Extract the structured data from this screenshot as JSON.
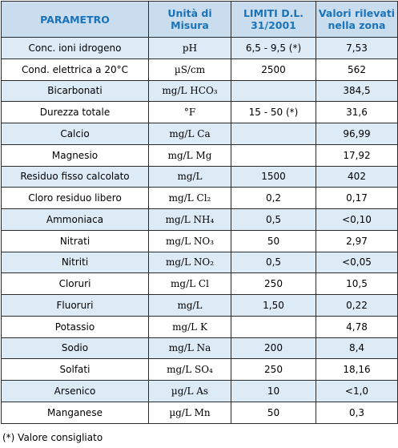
{
  "headers": {
    "parametro": "PARAMETRO",
    "unita": "Unità di Misura",
    "limiti": "LIMITI D.L. 31/2001",
    "valori": "Valori rilevati nella zona"
  },
  "rows": [
    {
      "name": "Conc. ioni idrogeno",
      "unit": "pH",
      "limit": "6,5 - 9,5 (*)",
      "value": "7,53"
    },
    {
      "name": "Cond. elettrica a 20°C",
      "unit": "µS/cm",
      "limit": "2500",
      "value": "562"
    },
    {
      "name": "Bicarbonati",
      "unit": "mg/L HCO₃",
      "limit": "",
      "value": "384,5"
    },
    {
      "name": "Durezza totale",
      "unit": "°F",
      "limit": "15 - 50 (*)",
      "value": "31,6"
    },
    {
      "name": "Calcio",
      "unit": "mg/L Ca",
      "limit": "",
      "value": "96,99"
    },
    {
      "name": "Magnesio",
      "unit": "mg/L Mg",
      "limit": "",
      "value": "17,92"
    },
    {
      "name": "Residuo fisso calcolato",
      "unit": "mg/L",
      "limit": "1500",
      "value": "402"
    },
    {
      "name": "Cloro residuo libero",
      "unit": "mg/L Cl₂",
      "limit": "0,2",
      "value": "0,17"
    },
    {
      "name": "Ammoniaca",
      "unit": "mg/L NH₄",
      "limit": "0,5",
      "value": "<0,10"
    },
    {
      "name": "Nitrati",
      "unit": "mg/L NO₃",
      "limit": "50",
      "value": "2,97"
    },
    {
      "name": "Nitriti",
      "unit": "mg/L NO₂",
      "limit": "0,5",
      "value": "<0,05"
    },
    {
      "name": "Cloruri",
      "unit": "mg/L Cl",
      "limit": "250",
      "value": "10,5"
    },
    {
      "name": "Fluoruri",
      "unit": "mg/L",
      "limit": "1,50",
      "value": "0,22"
    },
    {
      "name": "Potassio",
      "unit": "mg/L K",
      "limit": "",
      "value": "4,78"
    },
    {
      "name": "Sodio",
      "unit": "mg/L Na",
      "limit": "200",
      "value": "8,4"
    },
    {
      "name": "Solfati",
      "unit": "mg/L SO₄",
      "limit": "250",
      "value": "18,16"
    },
    {
      "name": "Arsenico",
      "unit": "µg/L As",
      "limit": "10",
      "value": "<1,0"
    },
    {
      "name": "Manganese",
      "unit": "µg/L Mn",
      "limit": "50",
      "value": "0,3"
    }
  ],
  "footnote": "(*) Valore consigliato"
}
